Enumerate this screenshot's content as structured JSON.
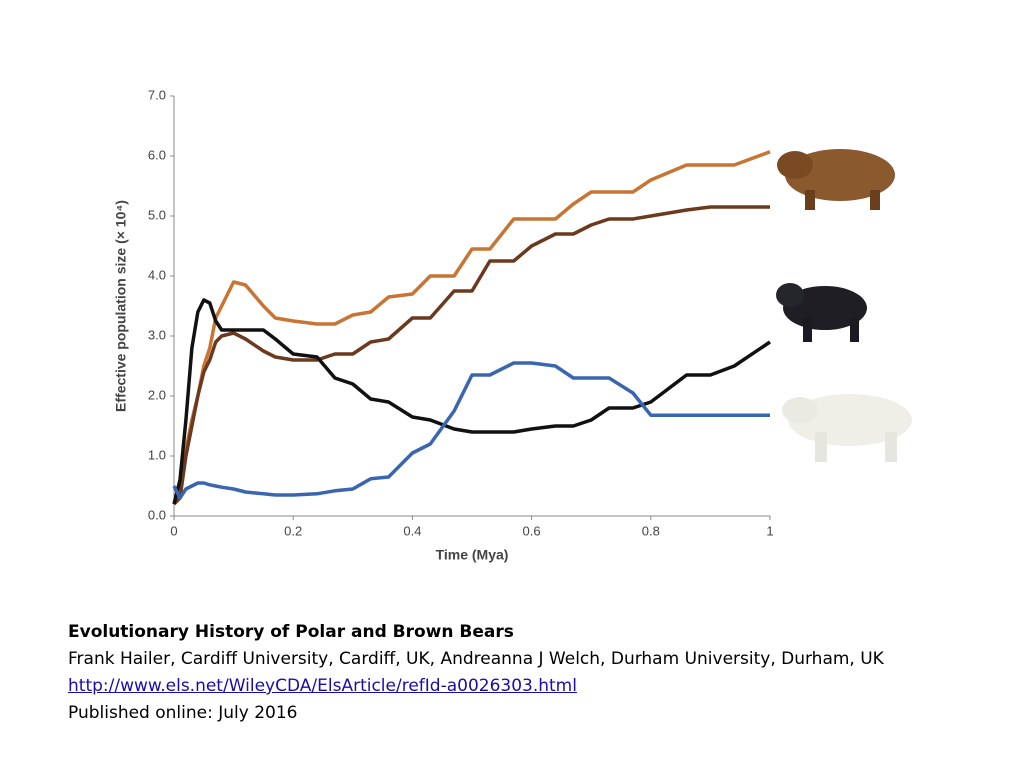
{
  "chart_data": {
    "type": "line",
    "xlabel": "Time (Mya)",
    "ylabel": "Effective population size (× 10⁴)",
    "x": [
      0,
      0.01,
      0.02,
      0.03,
      0.04,
      0.05,
      0.06,
      0.07,
      0.08,
      0.1,
      0.12,
      0.15,
      0.17,
      0.2,
      0.24,
      0.27,
      0.3,
      0.33,
      0.36,
      0.4,
      0.43,
      0.47,
      0.5,
      0.53,
      0.57,
      0.6,
      0.64,
      0.67,
      0.7,
      0.73,
      0.77,
      0.8,
      0.86,
      0.9,
      0.94,
      1
    ],
    "series": [
      {
        "color": "#c87534",
        "values": [
          0.2,
          0.3,
          1.1,
          1.6,
          2.0,
          2.5,
          2.8,
          3.3,
          3.5,
          3.9,
          3.85,
          3.5,
          3.3,
          3.25,
          3.2,
          3.2,
          3.35,
          3.4,
          3.65,
          3.7,
          4.0,
          4.0,
          4.45,
          4.45,
          4.95,
          4.95,
          4.95,
          5.2,
          5.4,
          5.4,
          5.4,
          5.6,
          5.85,
          5.85,
          5.85,
          6.07
        ]
      },
      {
        "color": "#6b3a1e",
        "values": [
          0.2,
          0.3,
          1.0,
          1.5,
          2.0,
          2.4,
          2.6,
          2.9,
          3.0,
          3.05,
          2.95,
          2.75,
          2.65,
          2.6,
          2.6,
          2.7,
          2.7,
          2.9,
          2.95,
          3.3,
          3.3,
          3.75,
          3.75,
          4.25,
          4.25,
          4.5,
          4.7,
          4.7,
          4.85,
          4.95,
          4.95,
          5.0,
          5.1,
          5.15,
          5.15,
          5.15
        ]
      },
      {
        "color": "#111111",
        "values": [
          0.2,
          0.6,
          1.6,
          2.8,
          3.4,
          3.6,
          3.55,
          3.25,
          3.1,
          3.1,
          3.1,
          3.1,
          2.95,
          2.7,
          2.65,
          2.3,
          2.2,
          1.95,
          1.9,
          1.65,
          1.6,
          1.45,
          1.4,
          1.4,
          1.4,
          1.45,
          1.5,
          1.5,
          1.6,
          1.8,
          1.8,
          1.9,
          2.35,
          2.35,
          2.5,
          2.9
        ]
      },
      {
        "color": "#3a66b0",
        "values": [
          0.5,
          0.3,
          0.45,
          0.5,
          0.55,
          0.55,
          0.52,
          0.5,
          0.48,
          0.45,
          0.4,
          0.37,
          0.35,
          0.35,
          0.37,
          0.42,
          0.45,
          0.62,
          0.65,
          1.05,
          1.2,
          1.75,
          2.35,
          2.35,
          2.55,
          2.55,
          2.5,
          2.3,
          2.3,
          2.3,
          2.05,
          1.68,
          1.68,
          1.68,
          1.68,
          1.68
        ]
      }
    ],
    "xlim": [
      0,
      1
    ],
    "xticks": [
      0,
      0.2,
      0.4,
      0.6,
      0.8,
      1
    ],
    "ylim": [
      0,
      7
    ],
    "yticks": [
      {
        "value": 0,
        "label": "0.0"
      },
      {
        "value": 1,
        "label": "1.0"
      },
      {
        "value": 2,
        "label": "2.0"
      },
      {
        "value": 3,
        "label": "3.0"
      },
      {
        "value": 4,
        "label": "4.0"
      },
      {
        "value": 5,
        "label": "5.0"
      },
      {
        "value": 6,
        "label": "6.0"
      },
      {
        "value": 7,
        "label": "7.0"
      }
    ],
    "grid": false
  },
  "caption": {
    "title": "Evolutionary History of Polar and Brown Bears",
    "authors": "Frank Hailer, Cardiff University, Cardiff, UK, Andreanna J Welch, Durham University, Durham, UK",
    "link": "http://www.els.net/WileyCDA/ElsArticle/refId-a0026303.html",
    "published": "Published online: July 2016"
  }
}
